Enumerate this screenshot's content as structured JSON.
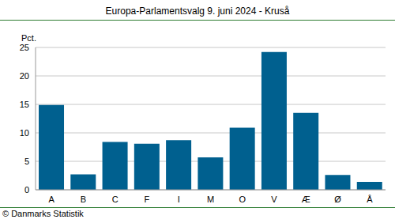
{
  "chart_data": {
    "type": "bar",
    "title": "Europa-Parlamentsvalg 9. juni 2024 - Kruså",
    "y_label": "Pct.",
    "annotations": [
      "© Danmarks Statistik"
    ],
    "categories": [
      "A",
      "B",
      "C",
      "F",
      "I",
      "M",
      "O",
      "V",
      "Æ",
      "Ø",
      "Å"
    ],
    "values": [
      14.9,
      2.7,
      8.4,
      8.1,
      8.7,
      5.7,
      10.9,
      24.2,
      13.5,
      2.6,
      1.4
    ],
    "color": "#00608f",
    "ylim": [
      0,
      25
    ],
    "yticks": [
      0,
      5,
      10,
      15,
      20,
      25
    ],
    "grid": true
  }
}
